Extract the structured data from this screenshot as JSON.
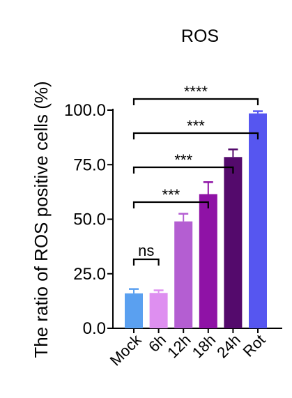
{
  "chart_data": {
    "type": "bar",
    "title": "ROS",
    "xlabel": "",
    "ylabel": "The ratio of ROS positive cells (%)",
    "categories": [
      "Mock",
      "6h",
      "12h",
      "18h",
      "24h",
      "Rot"
    ],
    "values": [
      16.0,
      16.2,
      49.0,
      61.5,
      78.5,
      98.5
    ],
    "errors": [
      2.0,
      1.2,
      3.5,
      5.5,
      3.5,
      1.0
    ],
    "colors": [
      "#5aa0f0",
      "#de8ff0",
      "#b45ed2",
      "#8f12a6",
      "#540a6c",
      "#5656f0"
    ],
    "ylim": [
      0,
      100
    ],
    "yticks": [
      "0.0",
      "25.0",
      "50.0",
      "75.0",
      "100.0"
    ],
    "ytick_values": [
      0,
      25,
      50,
      75,
      100
    ],
    "grid": false,
    "legend": "none",
    "significance": [
      {
        "from": 0,
        "to": 1,
        "label": "ns"
      },
      {
        "from": 0,
        "to": 3,
        "label": "***"
      },
      {
        "from": 0,
        "to": 4,
        "label": "***"
      },
      {
        "from": 0,
        "to": 5,
        "label": "***"
      },
      {
        "from": 0,
        "to": 5,
        "label": "****"
      }
    ]
  }
}
